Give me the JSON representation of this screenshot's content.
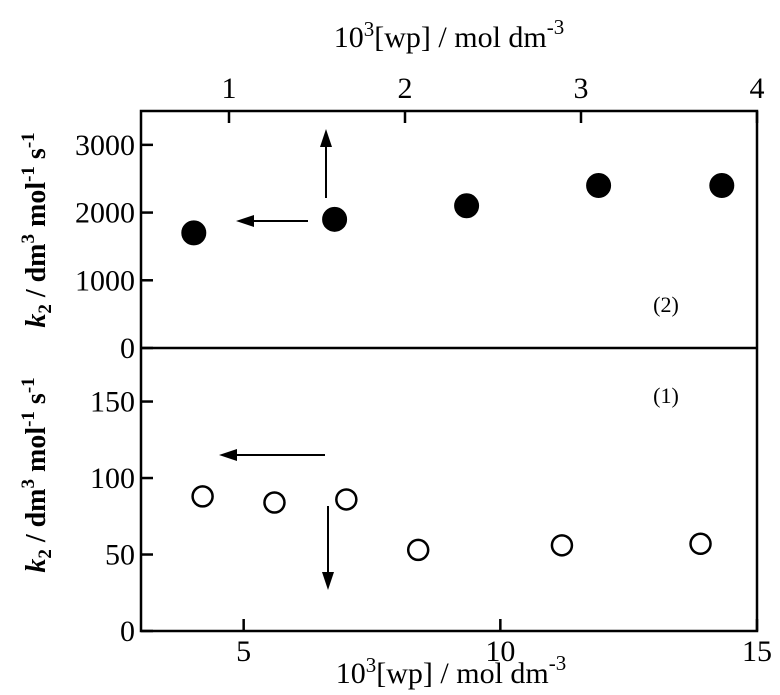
{
  "chart_data": [
    {
      "panel": "upper",
      "type": "scatter",
      "x_axis": {
        "position": "top",
        "label_base": "10",
        "label_exp": "3",
        "label_rest": "[wp] / mol dm",
        "label_unit_exp": "-3",
        "range": [
          0.5,
          4.0
        ],
        "ticks": [
          1,
          2,
          3,
          4
        ]
      },
      "y_axis": {
        "label_italic": "k",
        "label_sub": "2",
        "label_rest_1": " / dm",
        "label_exp_1": "3",
        "label_rest_2": " mol",
        "label_exp_2": "-1",
        "label_rest_3": " s",
        "label_exp_3": "-1",
        "range": [
          0,
          3500
        ],
        "ticks": [
          0,
          1000,
          2000,
          3000
        ]
      },
      "series": [
        {
          "marker": "filled-circle",
          "x": [
            0.8,
            1.6,
            2.35,
            3.1,
            3.8
          ],
          "y": [
            1700,
            1900,
            2100,
            2400,
            2400
          ]
        }
      ],
      "annotation": "(2)"
    },
    {
      "panel": "lower",
      "type": "scatter",
      "x_axis": {
        "position": "bottom",
        "label_base": "10",
        "label_exp": "3",
        "label_rest": "[wp] / mol dm",
        "label_unit_exp": "-3",
        "range": [
          3.0,
          15.0
        ],
        "ticks": [
          5,
          10,
          15
        ]
      },
      "y_axis": {
        "label_italic": "k",
        "label_sub": "2",
        "label_rest_1": " / dm",
        "label_exp_1": "3",
        "label_rest_2": " mol",
        "label_exp_2": "-1",
        "label_rest_3": " s",
        "label_exp_3": "-1",
        "range": [
          0,
          185
        ],
        "ticks": [
          0,
          50,
          100,
          150
        ]
      },
      "series": [
        {
          "marker": "open-circle",
          "x": [
            4.2,
            5.6,
            7.0,
            8.4,
            11.2,
            13.9
          ],
          "y": [
            88,
            84,
            86,
            53,
            56,
            57
          ]
        }
      ],
      "annotation": "(1)"
    }
  ]
}
